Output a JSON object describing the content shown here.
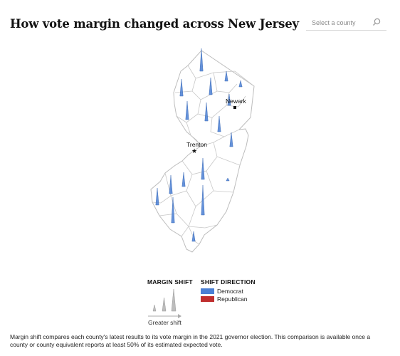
{
  "header": {
    "title": "How vote margin changed across New Jersey"
  },
  "search": {
    "placeholder": "Select a county",
    "icon": "search-icon"
  },
  "map": {
    "cities": [
      {
        "name": "Newark",
        "marker": "square"
      },
      {
        "name": "Trenton",
        "marker": "star"
      }
    ],
    "colors": {
      "democrat": "#4a7fd4",
      "republican": "#bf2e2e",
      "state_fill": "#ffffff",
      "county_border": "#c8c8c8"
    }
  },
  "legend": {
    "margin_shift_title": "MARGIN SHIFT",
    "greater_shift_label": "Greater shift",
    "direction_title": "SHIFT DIRECTION",
    "items": [
      {
        "label": "Democrat",
        "color": "#4a7fd4"
      },
      {
        "label": "Republican",
        "color": "#bf2e2e"
      }
    ]
  },
  "footnote": "Margin shift compares each county's latest results to its vote margin in the 2021 governor election. This comparison is available once a county or county equivalent reports at least 50% of its estimated expected vote."
}
